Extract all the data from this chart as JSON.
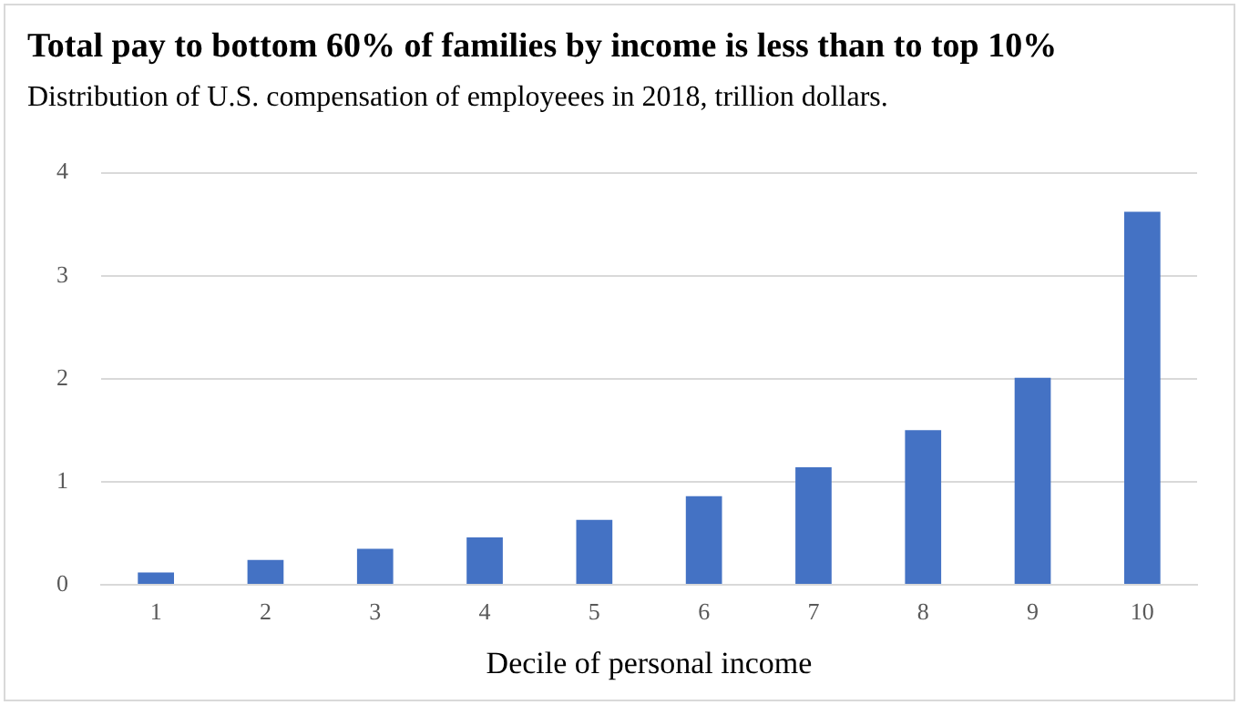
{
  "chart_data": {
    "type": "bar",
    "title": "Total pay to bottom 60% of families by income is less than to top 10%",
    "subtitle": "Distribution of U.S. compensation of employeees in 2018, trillion dollars.",
    "xlabel": "Decile of personal income",
    "categories": [
      "1",
      "2",
      "3",
      "4",
      "5",
      "6",
      "7",
      "8",
      "9",
      "10"
    ],
    "values": [
      0.12,
      0.24,
      0.35,
      0.46,
      0.63,
      0.86,
      1.14,
      1.5,
      2.01,
      3.62
    ],
    "color": "#4472c4",
    "ylim": [
      0,
      4
    ],
    "yticks": [
      0,
      1,
      2,
      3,
      4
    ],
    "grid": "y"
  }
}
